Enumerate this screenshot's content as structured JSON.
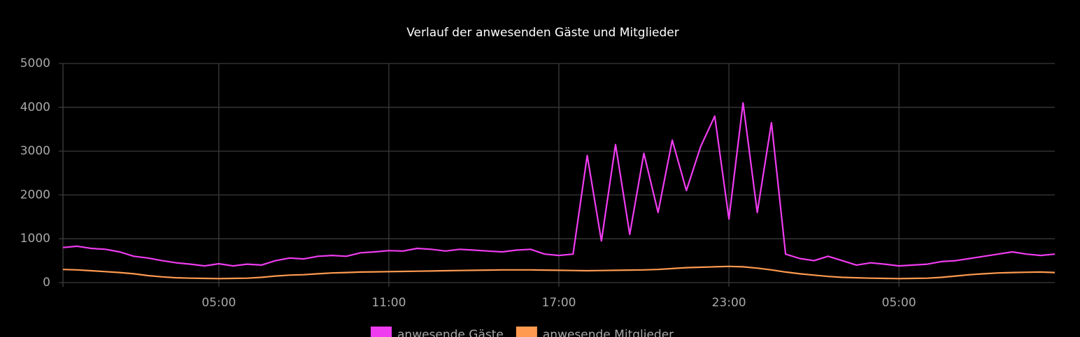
{
  "chart_data": {
    "type": "line",
    "title": "Verlauf der anwesenden Gäste und Mitglieder",
    "x": [
      -0.5,
      0,
      0.5,
      1,
      1.5,
      2,
      2.5,
      3,
      3.5,
      4,
      4.5,
      5,
      5.5,
      6,
      6.5,
      7,
      7.5,
      8,
      8.5,
      9,
      9.5,
      10,
      10.5,
      11,
      11.5,
      12,
      12.5,
      13,
      13.5,
      14,
      14.5,
      15,
      15.5,
      16,
      16.5,
      17,
      17.5,
      18,
      18.5,
      19,
      19.5,
      20,
      20.5,
      21,
      21.5,
      22,
      22.5,
      23,
      23.5,
      24,
      24.5,
      25,
      25.5,
      26,
      26.5,
      27,
      27.5,
      28,
      28.5,
      29,
      29.5,
      30,
      30.5,
      31,
      31.5,
      32,
      32.5,
      33,
      33.5,
      34,
      34.5
    ],
    "series": [
      {
        "name": "anwesende Gäste",
        "color": "#f03cf0",
        "values": [
          800,
          830,
          780,
          760,
          700,
          600,
          560,
          500,
          450,
          420,
          380,
          430,
          380,
          420,
          400,
          500,
          560,
          540,
          600,
          620,
          600,
          680,
          700,
          730,
          720,
          780,
          760,
          720,
          760,
          740,
          720,
          700,
          740,
          760,
          650,
          620,
          650,
          2900,
          950,
          3150,
          1100,
          2950,
          1600,
          3250,
          2100,
          3100,
          3800,
          1450,
          4100,
          1600,
          3650,
          650,
          550,
          500,
          600,
          500,
          400,
          450,
          420,
          380,
          400,
          420,
          480,
          500,
          550,
          600,
          650,
          700,
          650,
          620,
          650
        ]
      },
      {
        "name": "anwesende Mitglieder",
        "color": "#ff9a50",
        "values": [
          300,
          290,
          270,
          250,
          230,
          200,
          160,
          130,
          110,
          100,
          95,
          90,
          95,
          100,
          120,
          150,
          170,
          180,
          200,
          220,
          230,
          240,
          245,
          250,
          255,
          260,
          265,
          270,
          275,
          280,
          285,
          290,
          290,
          290,
          285,
          280,
          275,
          270,
          275,
          280,
          285,
          290,
          300,
          320,
          340,
          350,
          360,
          370,
          360,
          330,
          290,
          240,
          200,
          170,
          140,
          120,
          110,
          100,
          95,
          90,
          95,
          100,
          120,
          150,
          180,
          200,
          220,
          230,
          235,
          240,
          230
        ]
      }
    ],
    "xlim": [
      -0.5,
      34.5
    ],
    "xticks": [
      {
        "value": 5,
        "label": "05:00"
      },
      {
        "value": 11,
        "label": "11:00"
      },
      {
        "value": 17,
        "label": "17:00"
      },
      {
        "value": 23,
        "label": "23:00"
      },
      {
        "value": 29,
        "label": "05:00"
      }
    ],
    "ylim": [
      0,
      5000
    ],
    "yticks": [
      0,
      1000,
      2000,
      3000,
      4000,
      5000
    ],
    "grid": true,
    "legend": "bottom"
  }
}
